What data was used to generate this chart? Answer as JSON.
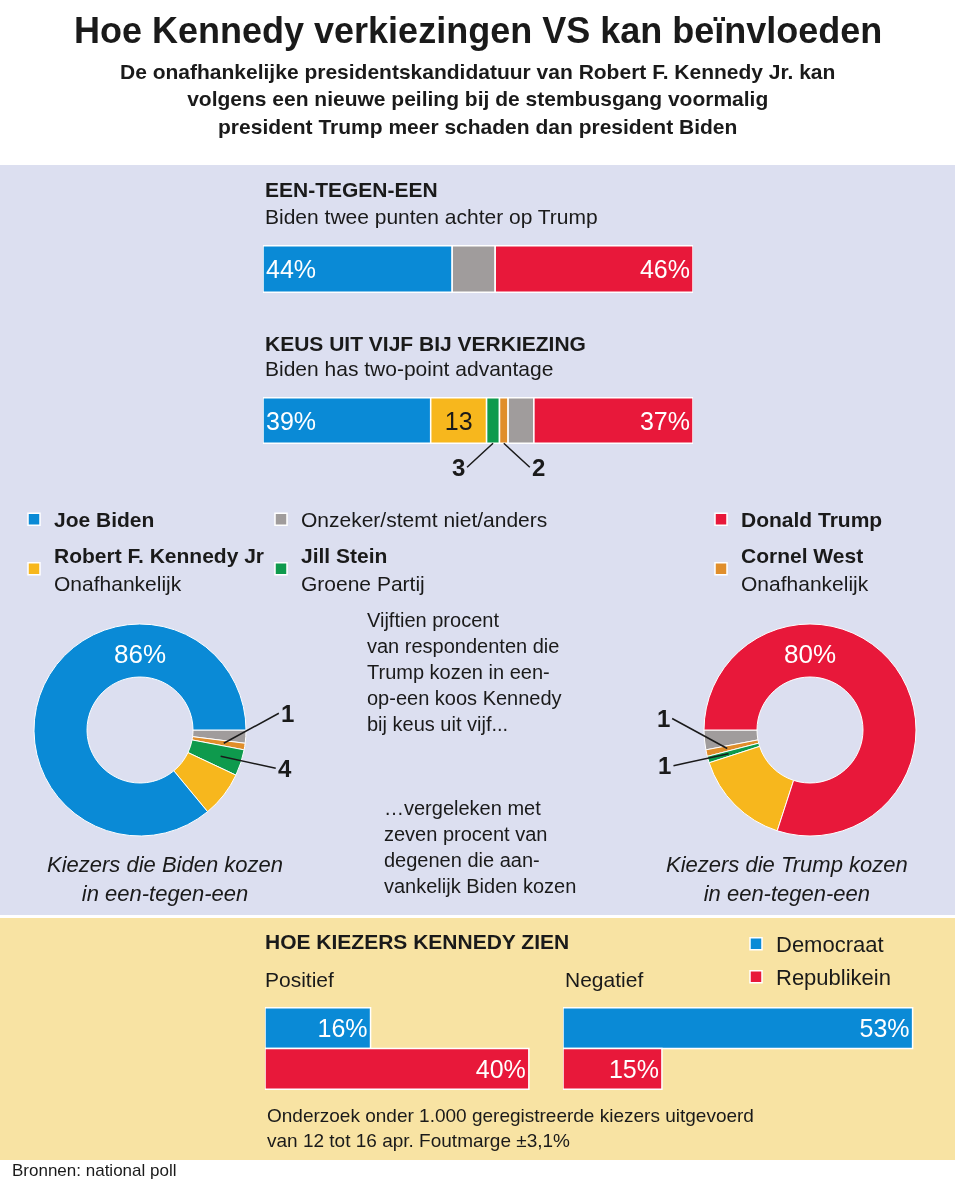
{
  "chart_data": [
    {
      "type": "other",
      "title": "Hoe Kennedy verkiezingen VS kan beïnvloeden",
      "subtitle": "De onafhankelijke presidentskandidatuur van Robert F. Kennedy Jr. kan\nvolgens een nieuwe peiling bij de stembusgang voormalig\npresident Trump meer schaden dan president Biden",
      "annotations": [
        "Bronnen: national poll"
      ]
    },
    {
      "type": "bar",
      "orientation": "horizontal",
      "stacked": true,
      "title": "EEN-TEGEN-EEN",
      "subtitle": "Biden twee punten achter op Trump",
      "categories": [
        null
      ],
      "xlim": [
        0,
        100
      ],
      "tick_labels": false,
      "series": [
        {
          "color": "#0a8ad6",
          "values": [
            44
          ],
          "value_labels": [
            "44%"
          ]
        },
        {
          "color": "#a09c9c",
          "values": [
            10
          ]
        },
        {
          "color": "#e8183a",
          "values": [
            46
          ],
          "value_labels": [
            "46%"
          ]
        }
      ]
    },
    {
      "type": "bar",
      "orientation": "horizontal",
      "stacked": true,
      "title": "KEUS UIT VIJF BIJ VERKIEZING",
      "subtitle": "Biden has two-point advantage",
      "categories": [
        null
      ],
      "xlim": [
        0,
        100
      ],
      "tick_labels": false,
      "legend": "bottom",
      "series": [
        {
          "name": "Joe Biden",
          "color": "#0a8ad6",
          "values": [
            39
          ],
          "value_labels": [
            "39%"
          ]
        },
        {
          "name": "Robert F. Kennedy Jr\nOnafhankelijk",
          "color": "#f7b71d",
          "values": [
            13
          ],
          "value_labels": [
            "13"
          ]
        },
        {
          "name": "Jill Stein\nGroene Partij",
          "color": "#0e9a4d",
          "values": [
            3
          ],
          "value_labels": [
            "3"
          ]
        },
        {
          "name": "Cornel West\nOnafhankelijk",
          "color": "#e08e2b",
          "values": [
            2
          ],
          "value_labels": [
            "2"
          ]
        },
        {
          "name": "Onzeker/stemt niet/anders",
          "color": "#a09c9c",
          "values": [
            6
          ]
        },
        {
          "name": "Donald Trump",
          "color": "#e8183a",
          "values": [
            37
          ],
          "value_labels": [
            "37%"
          ]
        }
      ]
    },
    {
      "type": "donut",
      "title": "Kiezers die Biden kozen\nin een-tegen-een",
      "categories": [
        null,
        null,
        null,
        null,
        null
      ],
      "values": [
        2,
        1,
        4,
        7,
        86
      ],
      "colors": [
        "#a09c9c",
        "#e08e2b",
        "#0e9a4d",
        "#f7b71d",
        "#0a8ad6"
      ],
      "value_labels": [
        null,
        "1",
        "4",
        null,
        "86%"
      ],
      "annotations": [
        "…vergeleken met\nzeven procent van\ndegenen die aan-\nvankelijk Biden kozen"
      ]
    },
    {
      "type": "donut",
      "title": "Kiezers die Trump kozen\nin een-tegen-een",
      "categories": [
        null,
        null,
        null,
        null,
        null
      ],
      "values": [
        3,
        1,
        1,
        15,
        80
      ],
      "colors": [
        "#a09c9c",
        "#e08e2b",
        "#0e9a4d",
        "#f7b71d",
        "#e8183a"
      ],
      "value_labels": [
        null,
        "1",
        "1",
        null,
        "80%"
      ],
      "annotations": [
        "Vijftien procent\nvan respondenten die\nTrump kozen in een-\nop-een koos Kennedy\nbij keus uit vijf..."
      ]
    },
    {
      "type": "bar",
      "orientation": "horizontal",
      "title": "HOE KIEZERS KENNEDY ZIEN",
      "subtitle": "Positief",
      "categories": [
        null
      ],
      "tick_labels": false,
      "legend": "top right",
      "series": [
        {
          "name": "Democraat",
          "color": "#0a8ad6",
          "values": [
            16
          ],
          "value_labels": [
            "16%"
          ]
        },
        {
          "name": "Republikein",
          "color": "#e8183a",
          "values": [
            40
          ],
          "value_labels": [
            "40%"
          ]
        }
      ],
      "annotations": [
        "Onderzoek onder 1.000 geregistreerde kiezers uitgevoerd\nvan 12 tot 16 apr. Foutmarge ±3,1%"
      ]
    },
    {
      "type": "bar",
      "orientation": "horizontal",
      "subtitle": "Negatief",
      "categories": [
        null
      ],
      "tick_labels": false,
      "series": [
        {
          "color": "#0a8ad6",
          "values": [
            53
          ],
          "value_labels": [
            "53%"
          ]
        },
        {
          "color": "#e8183a",
          "values": [
            15
          ],
          "value_labels": [
            "15%"
          ]
        }
      ]
    }
  ]
}
